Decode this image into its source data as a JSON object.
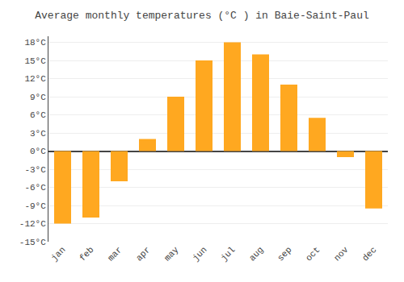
{
  "chart_data": {
    "type": "bar",
    "title": "Average monthly temperatures (°C ) in Baie-Saint-Paul",
    "categories": [
      "jan",
      "feb",
      "mar",
      "apr",
      "may",
      "jun",
      "jul",
      "aug",
      "sep",
      "oct",
      "nov",
      "dec"
    ],
    "values": [
      -12.0,
      -11.0,
      -5.0,
      2.0,
      9.0,
      15.0,
      18.0,
      16.0,
      11.0,
      5.5,
      -1.0,
      -9.5
    ],
    "color": "#FFA820",
    "ylim": [
      -15,
      19
    ],
    "yticks": [
      {
        "value": -15,
        "label": "-15°C"
      },
      {
        "value": -12,
        "label": "-12°C"
      },
      {
        "value": -9,
        "label": "-9°C"
      },
      {
        "value": -6,
        "label": "-6°C"
      },
      {
        "value": -3,
        "label": "-3°C"
      },
      {
        "value": 0,
        "label": "0°C"
      },
      {
        "value": 3,
        "label": "3°C"
      },
      {
        "value": 6,
        "label": "6°C"
      },
      {
        "value": 9,
        "label": "9°C"
      },
      {
        "value": 12,
        "label": "12°C"
      },
      {
        "value": 15,
        "label": "15°C"
      },
      {
        "value": 18,
        "label": "18°C"
      }
    ],
    "grid": true
  }
}
